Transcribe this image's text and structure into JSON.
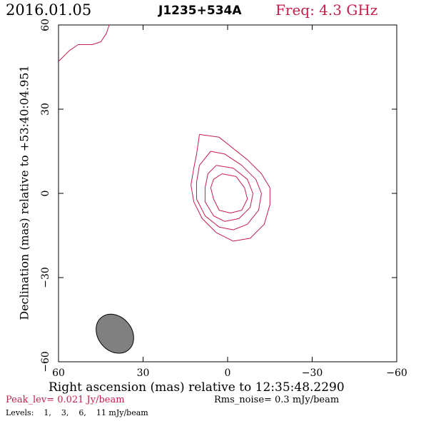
{
  "header": {
    "date": "2016.01.05",
    "source": "J1235+534A",
    "freq": "Freq: 4.3 GHz"
  },
  "chart_data": {
    "type": "contour",
    "title": "J1235+534A",
    "xlabel": "Right ascension (mas) relative to 12:35:48.2290",
    "ylabel": "Declination (mas) relative to +53:40:04.951",
    "xlim": [
      60,
      -60
    ],
    "ylim": [
      -60,
      60
    ],
    "xticks": [
      60,
      30,
      0,
      -30,
      -60
    ],
    "yticks": [
      -60,
      -30,
      0,
      30,
      60
    ],
    "xtick_labels": [
      "60",
      "30",
      "0",
      "−30",
      "−60"
    ],
    "ytick_labels": [
      "−60",
      "−30",
      "0",
      "30",
      "60"
    ],
    "peak_label": "Peak_lev=  0.021 Jy/beam",
    "rms_label": "Rms_noise=  0.3 mJy/beam",
    "levels_prefix": "Levels:",
    "levels_values": [
      "1,",
      "3,",
      "6,",
      "11 mJy/beam"
    ],
    "levels": [
      1,
      3,
      6,
      11
    ],
    "contour_color": "#c41e4a",
    "beam_color": "#808080",
    "contours": [
      [
        [
          10,
          21
        ],
        [
          3,
          20
        ],
        [
          -2,
          16
        ],
        [
          -7,
          12
        ],
        [
          -12,
          7
        ],
        [
          -15,
          2
        ],
        [
          -15,
          -4
        ],
        [
          -13,
          -11
        ],
        [
          -8,
          -16
        ],
        [
          -2,
          -17
        ],
        [
          4,
          -14
        ],
        [
          9,
          -9
        ],
        [
          12,
          -3
        ],
        [
          13,
          3
        ],
        [
          12,
          9
        ],
        [
          11,
          14
        ],
        [
          10,
          21
        ]
      ],
      [
        [
          6,
          15
        ],
        [
          1,
          14
        ],
        [
          -5,
          10
        ],
        [
          -10,
          5
        ],
        [
          -12,
          0
        ],
        [
          -11,
          -6
        ],
        [
          -7,
          -11
        ],
        [
          -2,
          -13
        ],
        [
          3,
          -12
        ],
        [
          8,
          -8
        ],
        [
          11,
          -2
        ],
        [
          11,
          4
        ],
        [
          10,
          10
        ],
        [
          6,
          15
        ]
      ],
      [
        [
          4,
          10
        ],
        [
          -2,
          9
        ],
        [
          -7,
          5
        ],
        [
          -9,
          0
        ],
        [
          -8,
          -5
        ],
        [
          -4,
          -9
        ],
        [
          1,
          -10
        ],
        [
          5,
          -8
        ],
        [
          8,
          -3
        ],
        [
          8,
          2
        ],
        [
          7,
          7
        ],
        [
          4,
          10
        ]
      ],
      [
        [
          2,
          7
        ],
        [
          -3,
          6
        ],
        [
          -6,
          2
        ],
        [
          -7,
          -2
        ],
        [
          -5,
          -6
        ],
        [
          -1,
          -7
        ],
        [
          3,
          -6
        ],
        [
          5,
          -2
        ],
        [
          6,
          2
        ],
        [
          5,
          5
        ],
        [
          2,
          7
        ]
      ],
      [
        [
          60,
          47
        ],
        [
          56,
          51
        ],
        [
          53,
          53
        ],
        [
          48,
          53
        ],
        [
          45,
          54
        ],
        [
          43,
          57
        ],
        [
          42,
          60
        ]
      ]
    ],
    "beam": {
      "x": 40,
      "y": -50,
      "major": 15,
      "minor": 12,
      "pa_deg": -40
    }
  }
}
